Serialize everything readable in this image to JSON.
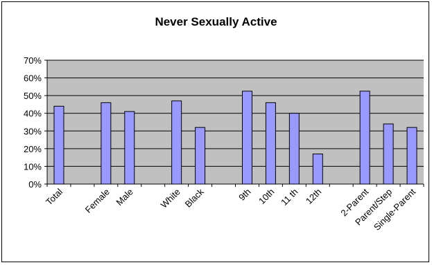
{
  "chart_data": {
    "type": "bar",
    "title": "Never Sexually Active",
    "xlabel": "",
    "ylabel": "",
    "ylim": [
      0,
      70
    ],
    "y_ticks": [
      "0%",
      "10%",
      "20%",
      "30%",
      "40%",
      "50%",
      "60%",
      "70%"
    ],
    "grid": true,
    "legend": "none",
    "categories": [
      "Total",
      "",
      "Female",
      "Male",
      "",
      "White",
      "Black",
      "",
      "9th",
      "10th",
      "11 th",
      "12th",
      "",
      "2-Parent",
      "Parent/Step",
      "Single-Parent"
    ],
    "values": [
      44,
      null,
      46,
      41,
      null,
      47,
      32,
      null,
      52.5,
      46,
      40,
      17,
      null,
      52.5,
      34,
      32
    ],
    "colors": {
      "plot_background": "#c0c0c0",
      "bar_fill": "#9999ff",
      "bar_stroke": "#000000",
      "gridline": "#000000"
    }
  }
}
